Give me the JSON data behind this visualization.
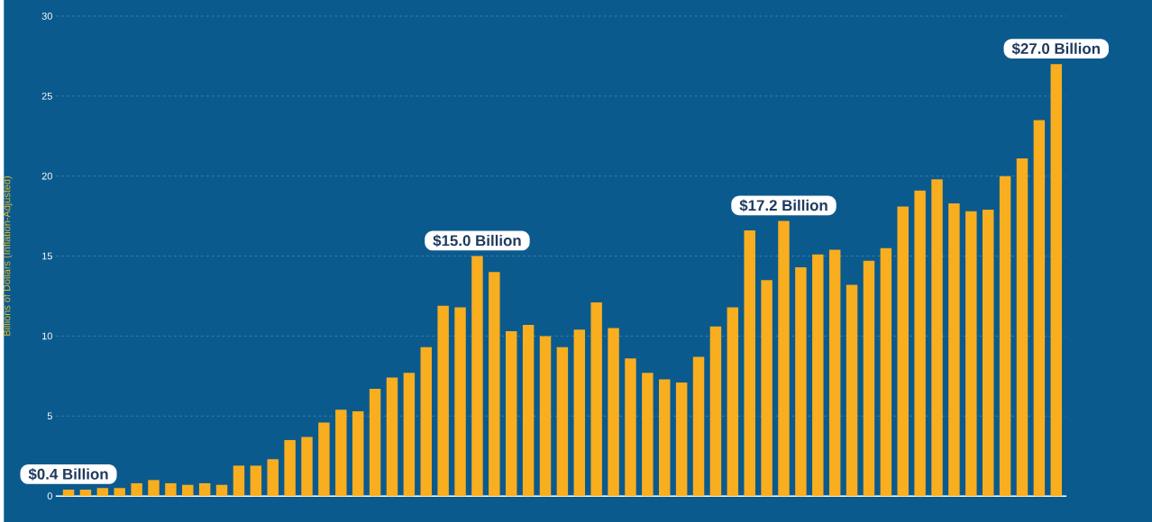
{
  "chart_data": {
    "type": "bar",
    "ylabel": "Billions of Dollars (Inflation-Adjusted)",
    "categories": [
      null,
      null,
      null,
      null,
      null,
      null,
      null,
      null,
      null,
      null,
      null,
      null,
      null,
      null,
      null,
      null,
      null,
      null,
      null,
      null,
      null,
      null,
      null,
      null,
      null,
      null,
      null,
      null,
      null,
      null,
      null,
      null,
      null,
      null,
      null,
      null,
      null,
      null,
      null,
      null,
      null,
      null,
      null,
      null,
      null,
      null,
      null,
      null,
      null,
      null,
      null,
      null,
      null,
      null,
      null,
      null,
      null,
      null,
      null
    ],
    "values": [
      0.4,
      0.4,
      0.5,
      0.5,
      0.8,
      1.0,
      0.8,
      0.7,
      0.8,
      0.7,
      1.9,
      1.9,
      2.3,
      3.5,
      3.7,
      4.6,
      5.4,
      5.3,
      6.7,
      7.4,
      7.7,
      9.3,
      11.9,
      11.8,
      15.0,
      14.0,
      10.3,
      10.7,
      10.0,
      9.3,
      10.4,
      12.1,
      10.5,
      8.6,
      7.7,
      7.3,
      7.1,
      8.7,
      10.6,
      11.8,
      16.6,
      13.5,
      17.2,
      14.3,
      15.1,
      15.4,
      13.2,
      14.7,
      15.5,
      18.1,
      19.1,
      19.8,
      18.3,
      17.8,
      17.9,
      20.0,
      21.1,
      23.5,
      27.0
    ],
    "value_labels": [
      "$0.4 Billion",
      null,
      null,
      null,
      null,
      null,
      null,
      null,
      null,
      null,
      null,
      null,
      null,
      null,
      null,
      null,
      null,
      null,
      null,
      null,
      null,
      null,
      null,
      null,
      "$15.0 Billion",
      null,
      null,
      null,
      null,
      null,
      null,
      null,
      null,
      null,
      null,
      null,
      null,
      null,
      null,
      null,
      null,
      null,
      "$17.2 Billion",
      null,
      null,
      null,
      null,
      null,
      null,
      null,
      null,
      null,
      null,
      null,
      null,
      null,
      null,
      null,
      "$27.0 Billion"
    ],
    "color": "#f8ae1f",
    "ylim": [
      0,
      30
    ],
    "yticks": [
      0,
      5,
      10,
      15,
      20,
      25,
      30
    ],
    "grid": "y"
  }
}
